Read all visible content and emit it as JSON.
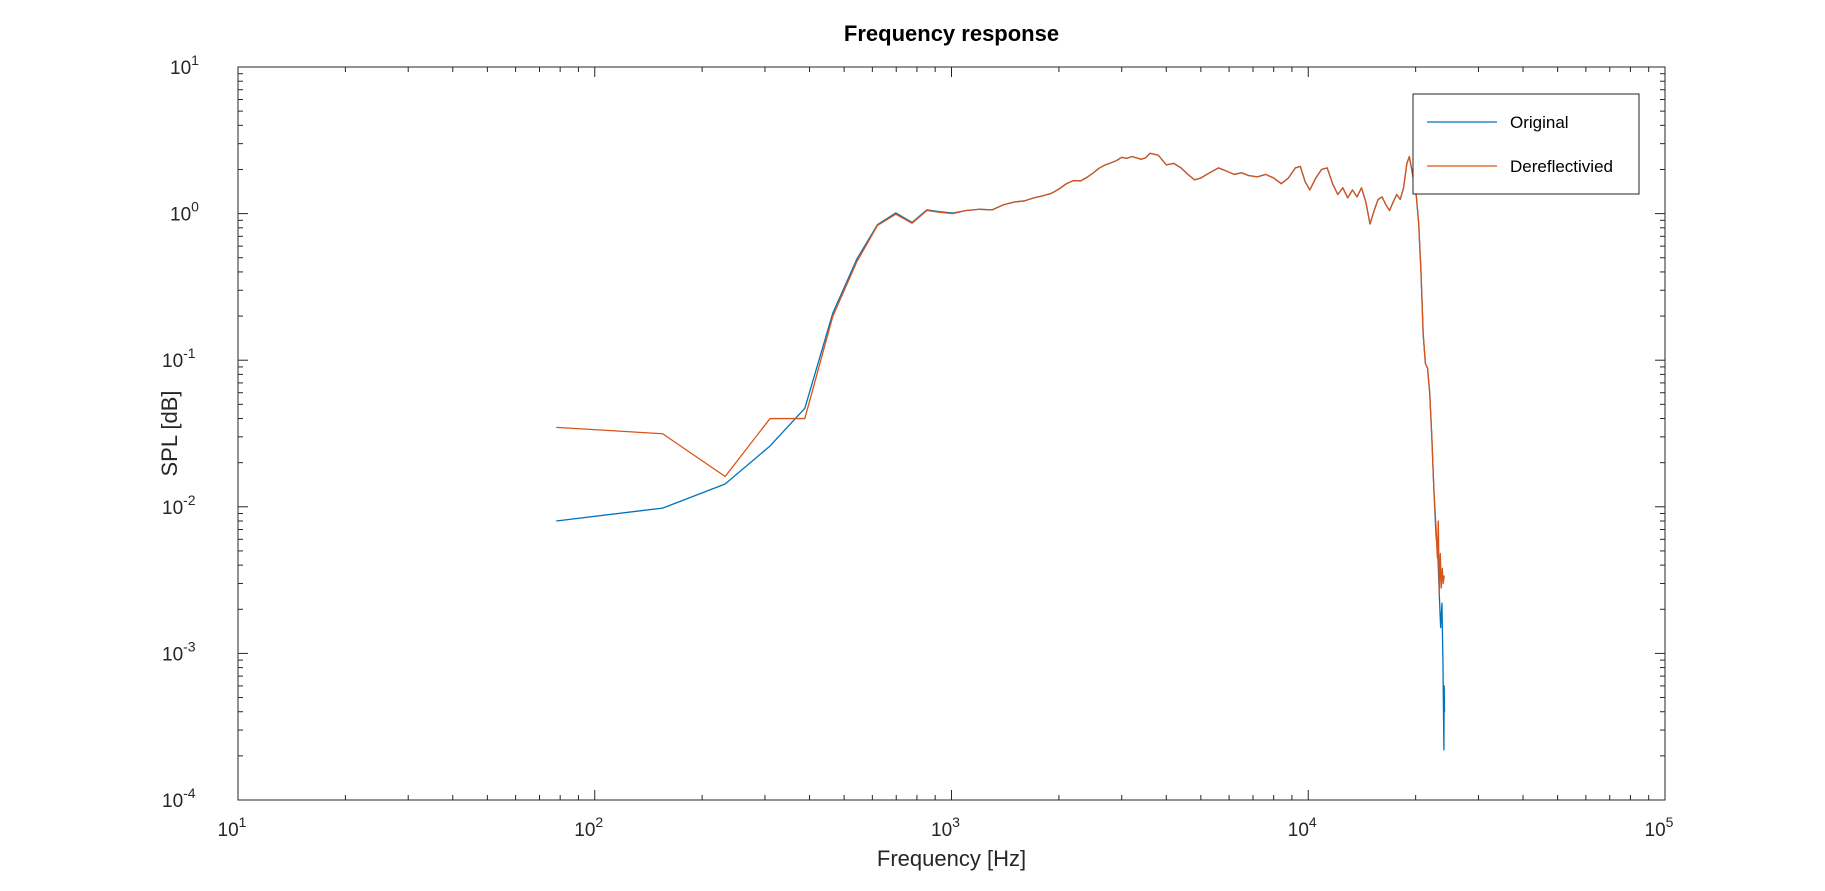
{
  "chart_data": {
    "type": "line",
    "title": "Frequency response",
    "xlabel": "Frequency [Hz]",
    "ylabel": "SPL [dB]",
    "x_scale": "log",
    "y_scale": "log",
    "xlim": [
      10,
      100000
    ],
    "ylim": [
      0.0001,
      10
    ],
    "x_ticks": [
      {
        "base": "10",
        "exp": "1",
        "value": 10
      },
      {
        "base": "10",
        "exp": "2",
        "value": 100
      },
      {
        "base": "10",
        "exp": "3",
        "value": 1000
      },
      {
        "base": "10",
        "exp": "4",
        "value": 10000
      },
      {
        "base": "10",
        "exp": "5",
        "value": 100000
      }
    ],
    "y_ticks": [
      {
        "base": "10",
        "exp": "-4",
        "value": 0.0001
      },
      {
        "base": "10",
        "exp": "-3",
        "value": 0.001
      },
      {
        "base": "10",
        "exp": "-2",
        "value": 0.01
      },
      {
        "base": "10",
        "exp": "-1",
        "value": 0.1
      },
      {
        "base": "10",
        "exp": "0",
        "value": 1
      },
      {
        "base": "10",
        "exp": "1",
        "value": 10
      }
    ],
    "grid": false,
    "legend_position": "top-right",
    "series": [
      {
        "name": "Original",
        "color": "#0072BD",
        "points": [
          [
            78,
            0.008
          ],
          [
            155,
            0.0098
          ],
          [
            232,
            0.0143
          ],
          [
            310,
            0.026
          ],
          [
            388,
            0.047
          ],
          [
            465,
            0.21
          ],
          [
            543,
            0.49
          ],
          [
            620,
            0.84
          ],
          [
            698,
            1.01
          ],
          [
            775,
            0.87
          ],
          [
            853,
            1.06
          ],
          [
            930,
            1.03
          ],
          [
            1008,
            1.01
          ],
          [
            1100,
            1.05
          ],
          [
            1200,
            1.07
          ],
          [
            1300,
            1.06
          ],
          [
            1400,
            1.15
          ],
          [
            1500,
            1.2
          ],
          [
            1600,
            1.22
          ],
          [
            1700,
            1.28
          ],
          [
            1800,
            1.32
          ],
          [
            1900,
            1.37
          ],
          [
            2000,
            1.47
          ],
          [
            2100,
            1.6
          ],
          [
            2200,
            1.68
          ],
          [
            2300,
            1.67
          ],
          [
            2400,
            1.77
          ],
          [
            2500,
            1.9
          ],
          [
            2600,
            2.05
          ],
          [
            2700,
            2.15
          ],
          [
            2800,
            2.22
          ],
          [
            2900,
            2.3
          ],
          [
            3000,
            2.42
          ],
          [
            3100,
            2.38
          ],
          [
            3200,
            2.45
          ],
          [
            3300,
            2.4
          ],
          [
            3400,
            2.35
          ],
          [
            3500,
            2.4
          ],
          [
            3600,
            2.58
          ],
          [
            3800,
            2.5
          ],
          [
            4000,
            2.15
          ],
          [
            4200,
            2.2
          ],
          [
            4400,
            2.05
          ],
          [
            4600,
            1.85
          ],
          [
            4800,
            1.7
          ],
          [
            5000,
            1.75
          ],
          [
            5300,
            1.9
          ],
          [
            5600,
            2.05
          ],
          [
            5900,
            1.95
          ],
          [
            6200,
            1.85
          ],
          [
            6500,
            1.9
          ],
          [
            6800,
            1.82
          ],
          [
            7200,
            1.78
          ],
          [
            7600,
            1.85
          ],
          [
            8000,
            1.75
          ],
          [
            8400,
            1.6
          ],
          [
            8800,
            1.75
          ],
          [
            9200,
            2.05
          ],
          [
            9500,
            2.1
          ],
          [
            9800,
            1.65
          ],
          [
            10100,
            1.45
          ],
          [
            10500,
            1.75
          ],
          [
            10900,
            2.0
          ],
          [
            11300,
            2.05
          ],
          [
            11700,
            1.6
          ],
          [
            12100,
            1.35
          ],
          [
            12500,
            1.5
          ],
          [
            12900,
            1.28
          ],
          [
            13300,
            1.45
          ],
          [
            13700,
            1.3
          ],
          [
            14100,
            1.5
          ],
          [
            14500,
            1.2
          ],
          [
            14900,
            0.85
          ],
          [
            15300,
            1.05
          ],
          [
            15700,
            1.25
          ],
          [
            16100,
            1.3
          ],
          [
            16500,
            1.15
          ],
          [
            16900,
            1.05
          ],
          [
            17300,
            1.2
          ],
          [
            17700,
            1.35
          ],
          [
            18100,
            1.25
          ],
          [
            18500,
            1.5
          ],
          [
            18900,
            2.2
          ],
          [
            19200,
            2.45
          ],
          [
            19500,
            2.0
          ],
          [
            19800,
            1.6
          ],
          [
            20100,
            1.3
          ],
          [
            20400,
            0.85
          ],
          [
            20700,
            0.4
          ],
          [
            21000,
            0.15
          ],
          [
            21300,
            0.095
          ],
          [
            21600,
            0.088
          ],
          [
            21900,
            0.06
          ],
          [
            22200,
            0.03
          ],
          [
            22500,
            0.013
          ],
          [
            22800,
            0.0065
          ],
          [
            23100,
            0.0045
          ],
          [
            23300,
            0.0025
          ],
          [
            23500,
            0.0015
          ],
          [
            23700,
            0.0022
          ],
          [
            23850,
            0.0009
          ],
          [
            24000,
            0.00022
          ],
          [
            24050,
            0.0006
          ],
          [
            24100,
            0.0004
          ]
        ]
      },
      {
        "name": "Dereflectivied",
        "color": "#D95319",
        "points": [
          [
            78,
            0.0348
          ],
          [
            155,
            0.0315
          ],
          [
            232,
            0.0161
          ],
          [
            310,
            0.04
          ],
          [
            388,
            0.04
          ],
          [
            465,
            0.2
          ],
          [
            543,
            0.47
          ],
          [
            620,
            0.83
          ],
          [
            698,
            0.99
          ],
          [
            775,
            0.86
          ],
          [
            853,
            1.05
          ],
          [
            930,
            1.02
          ],
          [
            1008,
            1.0
          ],
          [
            1100,
            1.05
          ],
          [
            1200,
            1.07
          ],
          [
            1300,
            1.06
          ],
          [
            1400,
            1.15
          ],
          [
            1500,
            1.2
          ],
          [
            1600,
            1.22
          ],
          [
            1700,
            1.28
          ],
          [
            1800,
            1.32
          ],
          [
            1900,
            1.37
          ],
          [
            2000,
            1.47
          ],
          [
            2100,
            1.6
          ],
          [
            2200,
            1.68
          ],
          [
            2300,
            1.67
          ],
          [
            2400,
            1.77
          ],
          [
            2500,
            1.9
          ],
          [
            2600,
            2.05
          ],
          [
            2700,
            2.15
          ],
          [
            2800,
            2.22
          ],
          [
            2900,
            2.3
          ],
          [
            3000,
            2.42
          ],
          [
            3100,
            2.38
          ],
          [
            3200,
            2.45
          ],
          [
            3300,
            2.4
          ],
          [
            3400,
            2.35
          ],
          [
            3500,
            2.4
          ],
          [
            3600,
            2.58
          ],
          [
            3800,
            2.5
          ],
          [
            4000,
            2.15
          ],
          [
            4200,
            2.2
          ],
          [
            4400,
            2.05
          ],
          [
            4600,
            1.85
          ],
          [
            4800,
            1.7
          ],
          [
            5000,
            1.75
          ],
          [
            5300,
            1.9
          ],
          [
            5600,
            2.05
          ],
          [
            5900,
            1.95
          ],
          [
            6200,
            1.85
          ],
          [
            6500,
            1.9
          ],
          [
            6800,
            1.82
          ],
          [
            7200,
            1.78
          ],
          [
            7600,
            1.85
          ],
          [
            8000,
            1.75
          ],
          [
            8400,
            1.6
          ],
          [
            8800,
            1.75
          ],
          [
            9200,
            2.05
          ],
          [
            9500,
            2.1
          ],
          [
            9800,
            1.65
          ],
          [
            10100,
            1.45
          ],
          [
            10500,
            1.75
          ],
          [
            10900,
            2.0
          ],
          [
            11300,
            2.05
          ],
          [
            11700,
            1.6
          ],
          [
            12100,
            1.35
          ],
          [
            12500,
            1.5
          ],
          [
            12900,
            1.28
          ],
          [
            13300,
            1.45
          ],
          [
            13700,
            1.3
          ],
          [
            14100,
            1.5
          ],
          [
            14500,
            1.2
          ],
          [
            14900,
            0.85
          ],
          [
            15300,
            1.05
          ],
          [
            15700,
            1.25
          ],
          [
            16100,
            1.3
          ],
          [
            16500,
            1.15
          ],
          [
            16900,
            1.05
          ],
          [
            17300,
            1.2
          ],
          [
            17700,
            1.35
          ],
          [
            18100,
            1.25
          ],
          [
            18500,
            1.5
          ],
          [
            18900,
            2.2
          ],
          [
            19200,
            2.45
          ],
          [
            19500,
            2.0
          ],
          [
            19800,
            1.6
          ],
          [
            20100,
            1.3
          ],
          [
            20400,
            0.85
          ],
          [
            20700,
            0.4
          ],
          [
            21000,
            0.15
          ],
          [
            21300,
            0.095
          ],
          [
            21600,
            0.088
          ],
          [
            21900,
            0.06
          ],
          [
            22200,
            0.03
          ],
          [
            22500,
            0.013
          ],
          [
            22800,
            0.0075
          ],
          [
            23000,
            0.0045
          ],
          [
            23150,
            0.008
          ],
          [
            23300,
            0.0025
          ],
          [
            23450,
            0.0048
          ],
          [
            23600,
            0.0028
          ],
          [
            23750,
            0.0038
          ],
          [
            23900,
            0.003
          ],
          [
            24050,
            0.0034
          ]
        ]
      }
    ]
  }
}
